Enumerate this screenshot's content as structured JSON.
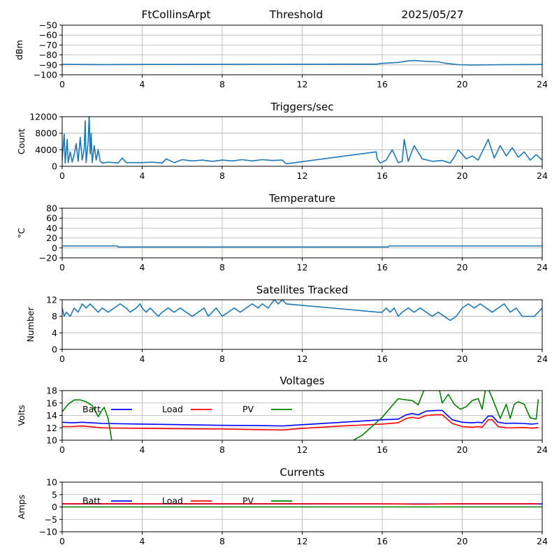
{
  "header": {
    "station": "FtCollinsArpt",
    "mode": "Threshold",
    "date": "2025/05/27"
  },
  "chart_data": [
    {
      "id": "signal",
      "type": "line",
      "title": "",
      "xlabel": "",
      "ylabel": "dBm",
      "xlim": [
        0,
        24
      ],
      "ylim": [
        -100,
        -50
      ],
      "xticks": [
        0,
        4,
        8,
        12,
        16,
        20,
        24
      ],
      "yticks": [
        -100,
        -90,
        -80,
        -70,
        -60,
        -50
      ],
      "grid": true,
      "series": [
        {
          "color": "#1f77b4",
          "x": [
            0,
            2,
            4,
            8,
            12,
            15.7,
            16,
            16.8,
            17.2,
            17.6,
            18.2,
            18.8,
            19.2,
            19.8,
            20.5,
            22,
            24
          ],
          "y": [
            -89.5,
            -89.7,
            -89.6,
            -89.5,
            -89.4,
            -89.3,
            -88.5,
            -87.5,
            -86.2,
            -85.6,
            -86.5,
            -87,
            -88.5,
            -89.8,
            -90.2,
            -89.8,
            -89.6
          ]
        }
      ]
    },
    {
      "id": "triggers",
      "type": "line",
      "title": "Triggers/sec",
      "xlabel": "",
      "ylabel": "Count",
      "xlim": [
        0,
        24
      ],
      "ylim": [
        0,
        12000
      ],
      "xticks": [
        0,
        4,
        8,
        12,
        16,
        20,
        24
      ],
      "yticks": [
        0,
        4000,
        8000,
        12000
      ],
      "grid": true,
      "series": [
        {
          "color": "#1f77b4",
          "x": [
            0,
            0.1,
            0.15,
            0.25,
            0.3,
            0.4,
            0.5,
            0.6,
            0.7,
            0.8,
            0.9,
            1.0,
            1.1,
            1.15,
            1.2,
            1.3,
            1.35,
            1.4,
            1.45,
            1.5,
            1.6,
            1.7,
            1.8,
            1.9,
            2.0,
            2.3,
            2.8,
            3.0,
            3.2,
            3.6,
            4.0,
            4.5,
            5.0,
            5.2,
            5.6,
            6.0,
            6.5,
            7.0,
            7.5,
            8.0,
            8.5,
            9.0,
            9.5,
            10.0,
            10.5,
            11.0,
            11.2,
            15.7,
            15.75,
            15.9,
            16.2,
            16.5,
            16.8,
            17.0,
            17.1,
            17.3,
            17.6,
            18.0,
            18.5,
            19.0,
            19.4,
            19.6,
            19.8,
            20.2,
            20.5,
            20.8,
            21.0,
            21.3,
            21.6,
            21.9,
            22.2,
            22.5,
            22.8,
            23.1,
            23.4,
            23.7,
            24
          ],
          "y": [
            1500,
            7800,
            800,
            6500,
            900,
            3500,
            1000,
            2800,
            5500,
            1200,
            7000,
            1500,
            4200,
            11000,
            900,
            6000,
            12500,
            3000,
            8000,
            900,
            5000,
            1500,
            4000,
            1200,
            800,
            1000,
            800,
            2000,
            900,
            900,
            900,
            1000,
            800,
            1800,
            900,
            1600,
            1300,
            1500,
            1200,
            1500,
            1300,
            1600,
            1300,
            1600,
            1400,
            1500,
            600,
            3500,
            1800,
            800,
            1500,
            4000,
            900,
            1200,
            6500,
            1200,
            5000,
            1800,
            1200,
            1400,
            800,
            2200,
            4000,
            1800,
            2500,
            1500,
            3500,
            6500,
            2000,
            5000,
            2500,
            4500,
            2200,
            3500,
            1500,
            2800,
            1500
          ]
        }
      ]
    },
    {
      "id": "temperature",
      "type": "line",
      "title": "Temperature",
      "xlabel": "",
      "ylabel": "°C",
      "xlim": [
        0,
        24
      ],
      "ylim": [
        -20,
        80
      ],
      "xticks": [
        0,
        4,
        8,
        12,
        16,
        20,
        24
      ],
      "yticks": [
        -20,
        0,
        20,
        40,
        60,
        80
      ],
      "grid": true,
      "series": [
        {
          "color": "#1f77b4",
          "x": [
            0,
            2.75,
            2.8,
            16.3,
            16.35,
            24
          ],
          "y": [
            4,
            4,
            2,
            2,
            4,
            4
          ]
        }
      ]
    },
    {
      "id": "satellites",
      "type": "line",
      "title": "Satellites Tracked",
      "xlabel": "",
      "ylabel": "Number",
      "xlim": [
        0,
        24
      ],
      "ylim": [
        0,
        12
      ],
      "xticks": [
        0,
        4,
        8,
        12,
        16,
        20,
        24
      ],
      "yticks": [
        0,
        4,
        8,
        12
      ],
      "grid": true,
      "series": [
        {
          "color": "#1f77b4",
          "x": [
            0,
            0.1,
            0.2,
            0.4,
            0.6,
            0.8,
            1.0,
            1.2,
            1.4,
            1.6,
            1.8,
            2.0,
            2.3,
            2.6,
            2.9,
            3.2,
            3.4,
            3.7,
            3.9,
            4.0,
            4.2,
            4.4,
            4.6,
            4.8,
            5.0,
            5.3,
            5.6,
            5.9,
            6.2,
            6.5,
            6.8,
            7.1,
            7.3,
            7.5,
            7.7,
            8.0,
            8.3,
            8.6,
            8.9,
            9.2,
            9.5,
            9.8,
            10.0,
            10.3,
            10.6,
            10.8,
            11.0,
            11.2,
            15.8,
            16.0,
            16.2,
            16.4,
            16.6,
            16.8,
            17.0,
            17.3,
            17.6,
            17.9,
            18.2,
            18.5,
            18.8,
            19.1,
            19.4,
            19.7,
            20.0,
            20.3,
            20.6,
            20.9,
            21.2,
            21.5,
            21.8,
            22.1,
            22.4,
            22.7,
            23.0,
            23.3,
            23.6,
            23.8,
            24
          ],
          "y": [
            10,
            8,
            9,
            8,
            10,
            9,
            11,
            10,
            11,
            10,
            9,
            10,
            9,
            10,
            11,
            10,
            9,
            10,
            11,
            10,
            9,
            10,
            9,
            8,
            9,
            10,
            9,
            10,
            9,
            8,
            9,
            10,
            8,
            9,
            10,
            8,
            9,
            10,
            9,
            10,
            11,
            10,
            11,
            10,
            12,
            11,
            12,
            11,
            9,
            9,
            10,
            9,
            10,
            8,
            9,
            10,
            9,
            10,
            9,
            8,
            9,
            8,
            7,
            8,
            10,
            11,
            10,
            11,
            10,
            9,
            10,
            11,
            9,
            10,
            8,
            8,
            8,
            9,
            10
          ]
        }
      ]
    },
    {
      "id": "voltages",
      "type": "line",
      "title": "Voltages",
      "xlabel": "",
      "ylabel": "Volts",
      "xlim": [
        0,
        24
      ],
      "ylim": [
        10,
        18
      ],
      "xticks": [
        0,
        4,
        8,
        12,
        16,
        20,
        24
      ],
      "yticks": [
        10,
        12,
        14,
        16,
        18
      ],
      "grid": true,
      "legend": "top-left",
      "series": [
        {
          "name": "Batt",
          "color": "#0000ff",
          "x": [
            0,
            0.5,
            1,
            2,
            4,
            6,
            8,
            10,
            11,
            12,
            14,
            16,
            16.8,
            17.2,
            17.5,
            17.8,
            18.2,
            18.7,
            19.0,
            19.5,
            20,
            20.5,
            20.8,
            21.0,
            21.3,
            21.5,
            21.8,
            22.2,
            22.6,
            23,
            23.5,
            23.8
          ],
          "y": [
            12.9,
            12.8,
            12.9,
            12.7,
            12.6,
            12.5,
            12.4,
            12.35,
            12.3,
            12.5,
            12.9,
            13.3,
            13.4,
            14.1,
            14.3,
            14.1,
            14.7,
            14.8,
            14.8,
            13.3,
            12.9,
            12.8,
            12.9,
            12.8,
            13.9,
            13.9,
            12.9,
            12.7,
            12.75,
            12.7,
            12.6,
            12.7
          ]
        },
        {
          "name": "Load",
          "color": "#ff0000",
          "x": [
            0,
            0.5,
            1,
            2,
            4,
            6,
            8,
            10,
            11,
            12,
            14,
            16,
            16.8,
            17.2,
            17.5,
            17.8,
            18.2,
            18.7,
            19.0,
            19.5,
            20,
            20.5,
            20.8,
            21.0,
            21.3,
            21.5,
            21.8,
            22.2,
            22.6,
            23,
            23.5,
            23.8
          ],
          "y": [
            12.2,
            12.2,
            12.3,
            12.0,
            11.9,
            11.85,
            11.8,
            11.7,
            11.65,
            11.9,
            12.3,
            12.6,
            12.8,
            13.5,
            13.7,
            13.5,
            14.0,
            14.1,
            14.1,
            12.7,
            12.2,
            12.1,
            12.2,
            12.1,
            13.3,
            13.3,
            12.2,
            12.0,
            12.0,
            12.05,
            11.95,
            12.05
          ]
        },
        {
          "name": "PV",
          "color": "#008000",
          "x": [
            0,
            0.3,
            0.6,
            0.9,
            1.2,
            1.5,
            1.8,
            2.0,
            2.1,
            2.3,
            2.5,
            14.3,
            15.0,
            16.0,
            16.8,
            17.2,
            17.5,
            17.8,
            18.2,
            18.8,
            19.0,
            19.3,
            19.6,
            19.9,
            20.2,
            20.5,
            20.8,
            21.0,
            21.2,
            21.5,
            21.9,
            22.2,
            22.4,
            22.6,
            22.8,
            23.1,
            23.4,
            23.7,
            23.8
          ],
          "y": [
            14.6,
            15.8,
            16.5,
            16.5,
            16.2,
            15.6,
            13.8,
            14.9,
            15.3,
            13.5,
            9.5,
            9.5,
            10.8,
            13.7,
            16.7,
            16.5,
            16.4,
            15.7,
            19,
            19,
            16,
            17.4,
            15.8,
            15,
            15.4,
            16.4,
            16.7,
            15,
            19,
            16.8,
            13.5,
            15.8,
            13.5,
            15.8,
            16.2,
            15.8,
            13.6,
            13.4,
            16.6
          ]
        }
      ]
    },
    {
      "id": "currents",
      "type": "line",
      "title": "Currents",
      "xlabel": "",
      "ylabel": "Amps",
      "xlim": [
        0,
        24
      ],
      "ylim": [
        -10,
        10
      ],
      "xticks": [
        0,
        4,
        8,
        12,
        16,
        20,
        24
      ],
      "yticks": [
        -10,
        -5,
        0,
        5,
        10
      ],
      "grid": true,
      "legend": "top-left",
      "series": [
        {
          "name": "Batt",
          "color": "#0000ff",
          "x": [
            0,
            24
          ],
          "y": [
            1.2,
            1.2
          ]
        },
        {
          "name": "Load",
          "color": "#ff0000",
          "x": [
            0,
            4,
            8,
            12,
            16,
            18,
            20,
            22,
            23.8
          ],
          "y": [
            1.3,
            1.3,
            1.3,
            1.3,
            1.25,
            1.1,
            1.3,
            1.3,
            1.3
          ]
        },
        {
          "name": "PV",
          "color": "#008000",
          "x": [
            0,
            24
          ],
          "y": [
            0,
            0
          ]
        }
      ]
    }
  ]
}
